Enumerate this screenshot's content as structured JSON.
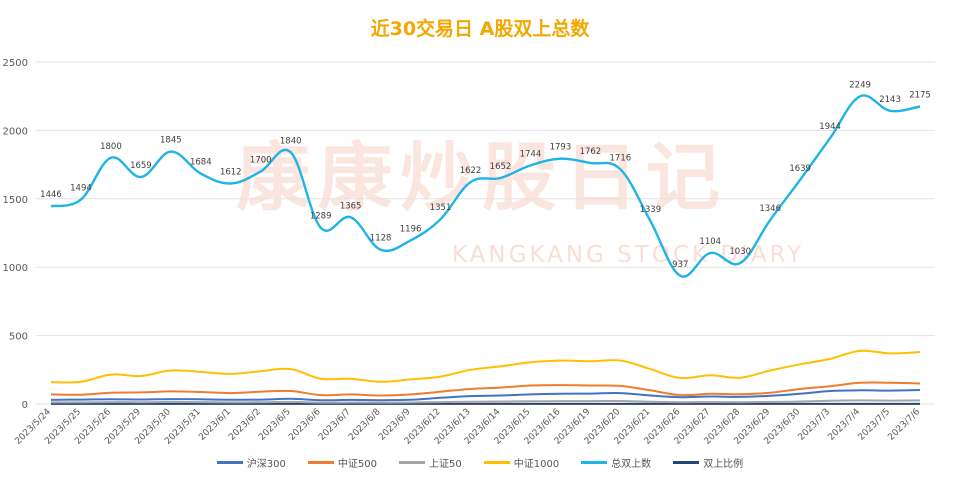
{
  "chart_data": {
    "type": "line",
    "title": "近30交易日 A股双上总数",
    "categories": [
      "2023/5/24",
      "2023/5/25",
      "2023/5/26",
      "2023/5/29",
      "2023/5/30",
      "2023/5/31",
      "2023/6/1",
      "2023/6/2",
      "2023/6/5",
      "2023/6/6",
      "2023/6/7",
      "2023/6/8",
      "2023/6/9",
      "2023/6/12",
      "2023/6/13",
      "2023/6/14",
      "2023/6/15",
      "2023/6/16",
      "2023/6/19",
      "2023/6/20",
      "2023/6/21",
      "2023/6/26",
      "2023/6/27",
      "2023/6/28",
      "2023/6/29",
      "2023/6/30",
      "2023/7/3",
      "2023/7/4",
      "2023/7/5",
      "2023/7/6"
    ],
    "ylim": [
      0,
      2500
    ],
    "yticks": [
      0,
      500,
      1000,
      1500,
      2000,
      2500
    ],
    "grid": true,
    "legend_position": "bottom",
    "series": [
      {
        "name": "沪深300",
        "color": "#4472c4",
        "values": [
          30,
          32,
          35,
          33,
          36,
          34,
          31,
          32,
          38,
          28,
          30,
          28,
          31,
          45,
          58,
          62,
          70,
          75,
          76,
          80,
          62,
          50,
          55,
          52,
          60,
          75,
          95,
          100,
          98,
          102
        ]
      },
      {
        "name": "中证500",
        "color": "#ed7d31",
        "values": [
          70,
          68,
          82,
          85,
          92,
          88,
          80,
          90,
          95,
          65,
          70,
          62,
          70,
          90,
          110,
          120,
          135,
          138,
          135,
          132,
          100,
          65,
          75,
          72,
          82,
          110,
          130,
          155,
          155,
          150
        ]
      },
      {
        "name": "上证50",
        "color": "#a5a5a5",
        "values": [
          12,
          12,
          14,
          13,
          15,
          14,
          12,
          13,
          15,
          10,
          11,
          10,
          11,
          14,
          17,
          18,
          20,
          21,
          21,
          22,
          17,
          13,
          14,
          13,
          15,
          18,
          24,
          26,
          25,
          26
        ]
      },
      {
        "name": "中证1000",
        "color": "#ffc000",
        "values": [
          160,
          162,
          215,
          205,
          245,
          235,
          220,
          240,
          255,
          185,
          185,
          162,
          180,
          200,
          250,
          275,
          305,
          318,
          312,
          318,
          255,
          190,
          210,
          192,
          245,
          290,
          330,
          388,
          370,
          380
        ]
      },
      {
        "name": "总双上数",
        "color": "#1fb4e6",
        "values": [
          1446,
          1494,
          1800,
          1659,
          1845,
          1684,
          1612,
          1700,
          1840,
          1289,
          1365,
          1128,
          1196,
          1351,
          1622,
          1652,
          1744,
          1793,
          1762,
          1716,
          1339,
          937,
          1104,
          1030,
          1346,
          1639,
          1944,
          2249,
          2143,
          2175
        ],
        "labels": [
          "1446",
          "1494",
          "1800",
          "1659",
          "1845",
          "1684",
          "1612",
          "1700",
          "1840",
          "1289",
          "1365",
          "1128",
          "1196",
          "1351",
          "1622",
          "1652",
          "1744",
          "1793",
          "1762",
          "1716",
          "1339",
          "937",
          "1104",
          "1030",
          "1346",
          "1639",
          "1944",
          "2249",
          "2143",
          "2175"
        ]
      },
      {
        "name": "双上比例",
        "color": "#264478",
        "values": [
          1,
          1,
          1,
          1,
          1,
          1,
          1,
          1,
          1,
          1,
          1,
          1,
          1,
          1,
          1,
          1,
          1,
          1,
          1,
          1,
          1,
          1,
          1,
          1,
          1,
          1,
          1,
          1,
          1,
          1
        ]
      }
    ]
  },
  "watermark": {
    "text": "康康炒股日记",
    "subtext": "KANGKANG STOCK DIARY"
  }
}
